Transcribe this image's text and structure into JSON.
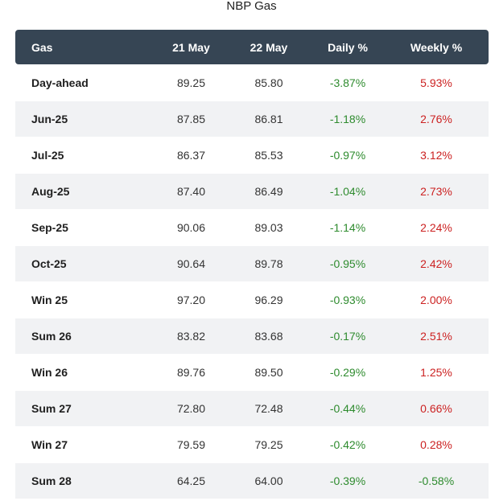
{
  "title": "NBP Gas",
  "chart_data": {
    "type": "table",
    "title": "NBP Gas",
    "columns": [
      "Gas",
      "21 May",
      "22 May",
      "Daily %",
      "Weekly %"
    ],
    "rows": [
      {
        "gas": "Day-ahead",
        "may21": "89.25",
        "may22": "85.80",
        "daily": "-3.87%",
        "weekly": "5.93%"
      },
      {
        "gas": "Jun-25",
        "may21": "87.85",
        "may22": "86.81",
        "daily": "-1.18%",
        "weekly": "2.76%"
      },
      {
        "gas": "Jul-25",
        "may21": "86.37",
        "may22": "85.53",
        "daily": "-0.97%",
        "weekly": "3.12%"
      },
      {
        "gas": "Aug-25",
        "may21": "87.40",
        "may22": "86.49",
        "daily": "-1.04%",
        "weekly": "2.73%"
      },
      {
        "gas": "Sep-25",
        "may21": "90.06",
        "may22": "89.03",
        "daily": "-1.14%",
        "weekly": "2.24%"
      },
      {
        "gas": "Oct-25",
        "may21": "90.64",
        "may22": "89.78",
        "daily": "-0.95%",
        "weekly": "2.42%"
      },
      {
        "gas": "Win 25",
        "may21": "97.20",
        "may22": "96.29",
        "daily": "-0.93%",
        "weekly": "2.00%"
      },
      {
        "gas": "Sum 26",
        "may21": "83.82",
        "may22": "83.68",
        "daily": "-0.17%",
        "weekly": "2.51%"
      },
      {
        "gas": "Win 26",
        "may21": "89.76",
        "may22": "89.50",
        "daily": "-0.29%",
        "weekly": "1.25%"
      },
      {
        "gas": "Sum 27",
        "may21": "72.80",
        "may22": "72.48",
        "daily": "-0.44%",
        "weekly": "0.66%"
      },
      {
        "gas": "Win 27",
        "may21": "79.59",
        "may22": "79.25",
        "daily": "-0.42%",
        "weekly": "0.28%"
      },
      {
        "gas": "Sum 28",
        "may21": "64.25",
        "may22": "64.00",
        "daily": "-0.39%",
        "weekly": "-0.58%"
      }
    ]
  },
  "colors": {
    "header_bg": "#364554",
    "negative": "#2e8b2e",
    "positive": "#cc2222",
    "alt_row": "#f1f2f4"
  }
}
